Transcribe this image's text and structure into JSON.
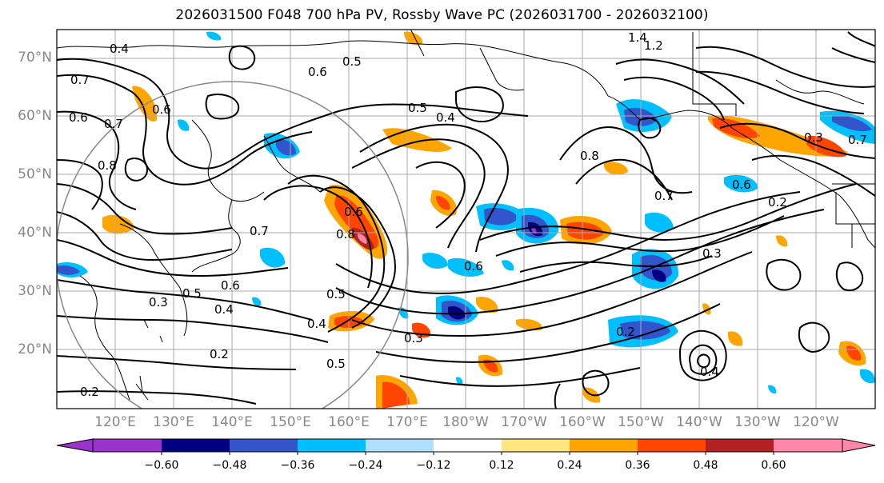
{
  "title": "2026031500 F048 700 hPa PV, Rossby Wave PC (2026031700 - 2026032100)",
  "map": {
    "lat_labels": [
      "70°N",
      "60°N",
      "50°N",
      "40°N",
      "30°N",
      "20°N"
    ],
    "lon_labels": [
      "120°E",
      "130°E",
      "140°E",
      "150°E",
      "160°E",
      "170°E",
      "180°W",
      "170°W",
      "160°W",
      "150°W",
      "140°W",
      "130°W",
      "120°W"
    ],
    "contour_labels": [
      "0.4",
      "0.5",
      "0.7",
      "0.6",
      "0.7",
      "0.8",
      "0.6",
      "0.5",
      "0.4",
      "0.3",
      "0.2",
      "0.6",
      "0.7",
      "0.5",
      "0.8",
      "0.6",
      "0.4",
      "0.3",
      "0.2",
      "1.4",
      "1.2",
      "0.6",
      "0.5",
      "0.3",
      "0.7",
      "0.6",
      "0.4",
      "0.3",
      "0.2",
      "0.2",
      "0.4",
      "0.5",
      "0.6",
      "0.7",
      "0.8"
    ],
    "colors": {
      "ocean": "#ffffff",
      "grid": "#aaaaaa",
      "contour": "#000000",
      "circle": "#888888"
    }
  },
  "colorbar": {
    "ticks": [
      "−0.60",
      "−0.48",
      "−0.36",
      "−0.24",
      "−0.12",
      "0.12",
      "0.24",
      "0.36",
      "0.48",
      "0.60"
    ],
    "colors": [
      "#9933cc",
      "#000080",
      "#3355cc",
      "#00bfff",
      "#b0e0ff",
      "#ffffff",
      "#ffe680",
      "#ffa500",
      "#ff4500",
      "#b22222",
      "#ff88aa"
    ]
  }
}
